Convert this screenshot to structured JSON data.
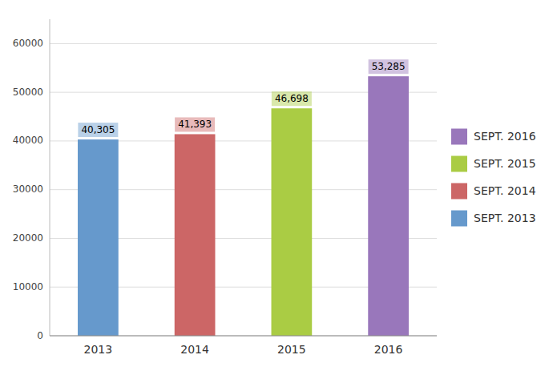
{
  "chart_data": {
    "type": "bar",
    "categories": [
      "2013",
      "2014",
      "2015",
      "2016"
    ],
    "series": [
      {
        "name": "SEPT. 2013",
        "color": "#6699cc",
        "values": [
          40305,
          null,
          null,
          null
        ],
        "value_labels": [
          "40,305",
          null,
          null,
          null
        ]
      },
      {
        "name": "SEPT. 2014",
        "color": "#cc6666",
        "values": [
          null,
          41393,
          null,
          null
        ],
        "value_labels": [
          null,
          "41,393",
          null,
          null
        ]
      },
      {
        "name": "SEPT. 2015",
        "color": "#aacc44",
        "values": [
          null,
          null,
          46698,
          null
        ],
        "value_labels": [
          null,
          null,
          "46,698",
          null
        ]
      },
      {
        "name": "SEPT. 2016",
        "color": "#9977bb",
        "values": [
          null,
          null,
          null,
          53285
        ],
        "value_labels": [
          null,
          null,
          null,
          "53,285"
        ]
      }
    ],
    "stacked": true,
    "data_labels": true,
    "ylim": [
      0,
      65000
    ],
    "yticks": [
      0,
      10000,
      20000,
      30000,
      40000,
      50000,
      60000
    ],
    "grid": true,
    "legend": "right"
  }
}
